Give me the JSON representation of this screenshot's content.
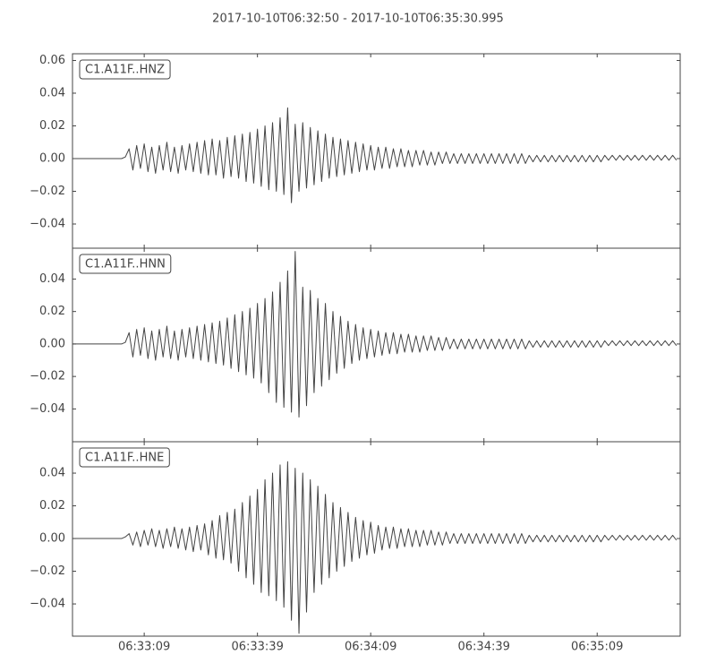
{
  "chart_data": [
    {
      "type": "line",
      "title": "2017-10-10T06:32:50  -  2017-10-10T06:35:30.995",
      "x": [
        0,
        1,
        2,
        3,
        4,
        5,
        6,
        7,
        8,
        9,
        10,
        11,
        12,
        13,
        14,
        15,
        16,
        17,
        18,
        19,
        20,
        21,
        22,
        23,
        24,
        25,
        26,
        27,
        28,
        29,
        30,
        31,
        32,
        33,
        34,
        35,
        36,
        37,
        38,
        39,
        40,
        41,
        42,
        43,
        44,
        45,
        46,
        47,
        48,
        49,
        50,
        51,
        52,
        53,
        54,
        55,
        56,
        57,
        58,
        59,
        60,
        61,
        62,
        63,
        64,
        65,
        66,
        67,
        68,
        69,
        70,
        71,
        72,
        73,
        74,
        75,
        76,
        77,
        78,
        79,
        80,
        81,
        82,
        83,
        84,
        85,
        86,
        87,
        88,
        89,
        90,
        91,
        92,
        93,
        94,
        95,
        96,
        97,
        98,
        99,
        100,
        101,
        102,
        103,
        104,
        105,
        106,
        107,
        108,
        109,
        110,
        111,
        112,
        113,
        114,
        115,
        116,
        117,
        118,
        119,
        120,
        121,
        122,
        123,
        124,
        125,
        126,
        127,
        128,
        129,
        130,
        131,
        132,
        133,
        134,
        135,
        136,
        137,
        138,
        139,
        140,
        141,
        142,
        143,
        144,
        145,
        146,
        147,
        148,
        149,
        150,
        151,
        152,
        153,
        154,
        155,
        156,
        157,
        158,
        159,
        160
      ],
      "series": [
        {
          "name": "C1.A11F..HNZ",
          "color": "#444444",
          "values": [
            0,
            0,
            0,
            0,
            0,
            0,
            0,
            0,
            0,
            0,
            0,
            0,
            0,
            0,
            0.001,
            0.006,
            -0.007,
            0.008,
            -0.006,
            0.009,
            -0.008,
            0.007,
            -0.009,
            0.008,
            -0.007,
            0.01,
            -0.008,
            0.007,
            -0.009,
            0.008,
            -0.007,
            0.009,
            -0.008,
            0.01,
            -0.009,
            0.011,
            -0.01,
            0.012,
            -0.01,
            0.011,
            -0.012,
            0.013,
            -0.011,
            0.014,
            -0.012,
            0.015,
            -0.014,
            0.016,
            -0.015,
            0.018,
            -0.017,
            0.02,
            -0.019,
            0.022,
            -0.02,
            0.025,
            -0.022,
            0.031,
            -0.027,
            0.021,
            -0.02,
            0.022,
            -0.018,
            0.019,
            -0.016,
            0.017,
            -0.014,
            0.015,
            -0.012,
            0.013,
            -0.011,
            0.012,
            -0.01,
            0.011,
            -0.009,
            0.01,
            -0.008,
            0.009,
            -0.007,
            0.008,
            -0.007,
            0.007,
            -0.006,
            0.007,
            -0.006,
            0.006,
            -0.005,
            0.006,
            -0.005,
            0.005,
            -0.005,
            0.005,
            -0.004,
            0.005,
            -0.004,
            0.004,
            -0.004,
            0.004,
            -0.003,
            0.004,
            -0.003,
            0.003,
            -0.003,
            0.003,
            -0.003,
            0.003,
            -0.003,
            0.003,
            -0.003,
            0.003,
            -0.003,
            0.003,
            -0.003,
            0.003,
            -0.003,
            0.003,
            -0.003,
            0.003,
            -0.003,
            0.003,
            -0.003,
            0.002,
            -0.002,
            0.002,
            -0.002,
            0.002,
            -0.002,
            0.002,
            -0.002,
            0.002,
            -0.002,
            0.002,
            -0.002,
            0.002,
            -0.002,
            0.002,
            -0.002,
            0.002,
            -0.002,
            0.002,
            -0.002,
            0.002,
            -0.001,
            0.002,
            -0.001,
            0.002,
            -0.001,
            0.002,
            -0.001,
            0.002,
            -0.001,
            0.002,
            -0.001,
            0.002,
            -0.001,
            0.002,
            -0.001,
            0.002,
            -0.001,
            0.002,
            -0.001
          ]
        }
      ],
      "xlim": [
        0,
        160.995
      ],
      "ylim": [
        -0.0548,
        0.0641
      ],
      "yticks": [
        {
          "value": -0.04,
          "label": "−0.04"
        },
        {
          "value": -0.02,
          "label": "−0.02"
        },
        {
          "value": 0,
          "label": "0.00"
        },
        0.02,
        0.04,
        0.06
      ]
    },
    {
      "type": "line",
      "x": [
        0,
        1,
        2,
        3,
        4,
        5,
        6,
        7,
        8,
        9,
        10,
        11,
        12,
        13,
        14,
        15,
        16,
        17,
        18,
        19,
        20,
        21,
        22,
        23,
        24,
        25,
        26,
        27,
        28,
        29,
        30,
        31,
        32,
        33,
        34,
        35,
        36,
        37,
        38,
        39,
        40,
        41,
        42,
        43,
        44,
        45,
        46,
        47,
        48,
        49,
        50,
        51,
        52,
        53,
        54,
        55,
        56,
        57,
        58,
        59,
        60,
        61,
        62,
        63,
        64,
        65,
        66,
        67,
        68,
        69,
        70,
        71,
        72,
        73,
        74,
        75,
        76,
        77,
        78,
        79,
        80,
        81,
        82,
        83,
        84,
        85,
        86,
        87,
        88,
        89,
        90,
        91,
        92,
        93,
        94,
        95,
        96,
        97,
        98,
        99,
        100,
        101,
        102,
        103,
        104,
        105,
        106,
        107,
        108,
        109,
        110,
        111,
        112,
        113,
        114,
        115,
        116,
        117,
        118,
        119,
        120,
        121,
        122,
        123,
        124,
        125,
        126,
        127,
        128,
        129,
        130,
        131,
        132,
        133,
        134,
        135,
        136,
        137,
        138,
        139,
        140,
        141,
        142,
        143,
        144,
        145,
        146,
        147,
        148,
        149,
        150,
        151,
        152,
        153,
        154,
        155,
        156,
        157,
        158,
        159,
        160
      ],
      "series": [
        {
          "name": "C1.A11F..HNN",
          "color": "#444444",
          "values": [
            0,
            0,
            0,
            0,
            0,
            0,
            0,
            0,
            0,
            0,
            0,
            0,
            0,
            0,
            0.001,
            0.007,
            -0.008,
            0.009,
            -0.007,
            0.01,
            -0.009,
            0.008,
            -0.01,
            0.009,
            -0.008,
            0.011,
            -0.009,
            0.008,
            -0.01,
            0.009,
            -0.008,
            0.01,
            -0.009,
            0.011,
            -0.01,
            0.012,
            -0.011,
            0.013,
            -0.012,
            0.014,
            -0.013,
            0.016,
            -0.015,
            0.018,
            -0.017,
            0.02,
            -0.019,
            0.022,
            -0.021,
            0.025,
            -0.024,
            0.028,
            -0.03,
            0.032,
            -0.036,
            0.038,
            -0.039,
            0.045,
            -0.042,
            0.057,
            -0.045,
            0.035,
            -0.038,
            0.033,
            -0.03,
            0.028,
            -0.026,
            0.025,
            -0.022,
            0.02,
            -0.018,
            0.017,
            -0.015,
            0.014,
            -0.012,
            0.012,
            -0.01,
            0.01,
            -0.009,
            0.009,
            -0.008,
            0.008,
            -0.007,
            0.007,
            -0.006,
            0.007,
            -0.006,
            0.006,
            -0.005,
            0.006,
            -0.005,
            0.005,
            -0.005,
            0.005,
            -0.004,
            0.005,
            -0.004,
            0.004,
            -0.004,
            0.004,
            -0.003,
            0.003,
            -0.003,
            0.003,
            -0.003,
            0.003,
            -0.003,
            0.003,
            -0.003,
            0.003,
            -0.003,
            0.003,
            -0.003,
            0.003,
            -0.003,
            0.003,
            -0.003,
            0.003,
            -0.003,
            0.003,
            -0.003,
            0.002,
            -0.002,
            0.002,
            -0.002,
            0.002,
            -0.002,
            0.002,
            -0.002,
            0.002,
            -0.002,
            0.002,
            -0.002,
            0.002,
            -0.002,
            0.002,
            -0.002,
            0.002,
            -0.002,
            0.002,
            -0.002,
            0.002,
            -0.001,
            0.002,
            -0.001,
            0.002,
            -0.001,
            0.002,
            -0.001,
            0.002,
            -0.001,
            0.002,
            -0.001,
            0.002,
            -0.001,
            0.002,
            -0.001,
            0.002,
            -0.001,
            0.002,
            -0.001
          ]
        }
      ],
      "xlim": [
        0,
        160.995
      ],
      "ylim": [
        -0.0602,
        0.059
      ],
      "yticks": [
        {
          "value": -0.04,
          "label": "−0.04"
        },
        {
          "value": -0.02,
          "label": "−0.02"
        },
        {
          "value": 0,
          "label": "0.00"
        },
        0.02,
        0.04
      ]
    },
    {
      "type": "line",
      "x": [
        0,
        1,
        2,
        3,
        4,
        5,
        6,
        7,
        8,
        9,
        10,
        11,
        12,
        13,
        14,
        15,
        16,
        17,
        18,
        19,
        20,
        21,
        22,
        23,
        24,
        25,
        26,
        27,
        28,
        29,
        30,
        31,
        32,
        33,
        34,
        35,
        36,
        37,
        38,
        39,
        40,
        41,
        42,
        43,
        44,
        45,
        46,
        47,
        48,
        49,
        50,
        51,
        52,
        53,
        54,
        55,
        56,
        57,
        58,
        59,
        60,
        61,
        62,
        63,
        64,
        65,
        66,
        67,
        68,
        69,
        70,
        71,
        72,
        73,
        74,
        75,
        76,
        77,
        78,
        79,
        80,
        81,
        82,
        83,
        84,
        85,
        86,
        87,
        88,
        89,
        90,
        91,
        92,
        93,
        94,
        95,
        96,
        97,
        98,
        99,
        100,
        101,
        102,
        103,
        104,
        105,
        106,
        107,
        108,
        109,
        110,
        111,
        112,
        113,
        114,
        115,
        116,
        117,
        118,
        119,
        120,
        121,
        122,
        123,
        124,
        125,
        126,
        127,
        128,
        129,
        130,
        131,
        132,
        133,
        134,
        135,
        136,
        137,
        138,
        139,
        140,
        141,
        142,
        143,
        144,
        145,
        146,
        147,
        148,
        149,
        150,
        151,
        152,
        153,
        154,
        155,
        156,
        157,
        158,
        159,
        160
      ],
      "series": [
        {
          "name": "C1.A11F..HNE",
          "color": "#444444",
          "values": [
            0,
            0,
            0,
            0,
            0,
            0,
            0,
            0,
            0,
            0,
            0,
            0,
            0,
            0,
            0.001,
            0.003,
            -0.004,
            0.004,
            -0.005,
            0.005,
            -0.004,
            0.006,
            -0.005,
            0.005,
            -0.006,
            0.006,
            -0.005,
            0.007,
            -0.006,
            0.006,
            -0.007,
            0.007,
            -0.008,
            0.008,
            -0.007,
            0.009,
            -0.01,
            0.011,
            -0.012,
            0.014,
            -0.013,
            0.016,
            -0.015,
            0.018,
            -0.02,
            0.022,
            -0.024,
            0.026,
            -0.028,
            0.03,
            -0.033,
            0.036,
            -0.035,
            0.04,
            -0.038,
            0.045,
            -0.042,
            0.047,
            -0.05,
            0.043,
            -0.058,
            0.04,
            -0.045,
            0.036,
            -0.033,
            0.032,
            -0.028,
            0.027,
            -0.024,
            0.022,
            -0.02,
            0.019,
            -0.017,
            0.016,
            -0.014,
            0.013,
            -0.012,
            0.011,
            -0.01,
            0.01,
            -0.009,
            0.008,
            -0.007,
            0.007,
            -0.006,
            0.007,
            -0.006,
            0.006,
            -0.005,
            0.006,
            -0.005,
            0.005,
            -0.005,
            0.005,
            -0.004,
            0.005,
            -0.004,
            0.004,
            -0.004,
            0.004,
            -0.003,
            0.003,
            -0.003,
            0.003,
            -0.003,
            0.003,
            -0.003,
            0.003,
            -0.003,
            0.003,
            -0.003,
            0.003,
            -0.003,
            0.003,
            -0.003,
            0.003,
            -0.003,
            0.003,
            -0.003,
            0.003,
            -0.003,
            0.002,
            -0.002,
            0.002,
            -0.002,
            0.002,
            -0.002,
            0.002,
            -0.002,
            0.002,
            -0.002,
            0.002,
            -0.002,
            0.002,
            -0.002,
            0.002,
            -0.002,
            0.002,
            -0.002,
            0.002,
            -0.002,
            0.002,
            -0.001,
            0.002,
            -0.001,
            0.002,
            -0.001,
            0.002,
            -0.001,
            0.002,
            -0.001,
            0.002,
            -0.001,
            0.002,
            -0.001,
            0.002,
            -0.001,
            0.002,
            -0.001,
            0.002,
            -0.001
          ]
        }
      ],
      "xlim": [
        0,
        160.995
      ],
      "ylim": [
        -0.0597,
        0.0592
      ],
      "yticks": [
        {
          "value": -0.04,
          "label": "−0.04"
        },
        {
          "value": -0.02,
          "label": "−0.02"
        },
        {
          "value": 0,
          "label": "0.00"
        },
        0.02,
        0.04
      ],
      "xticks": [
        {
          "value": 19,
          "label": "06:33:09"
        },
        {
          "value": 49,
          "label": "06:33:39"
        },
        {
          "value": 79,
          "label": "06:34:09"
        },
        {
          "value": 109,
          "label": "06:34:39"
        },
        {
          "value": 139,
          "label": "06:35:09"
        }
      ]
    }
  ]
}
